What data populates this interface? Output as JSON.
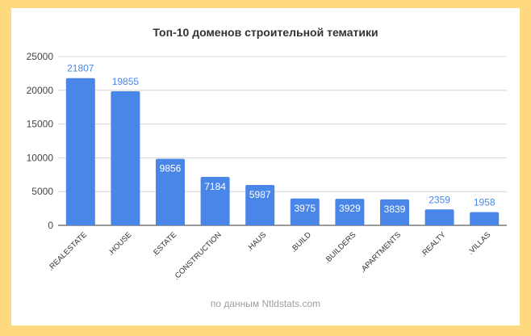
{
  "chart_data": {
    "type": "bar",
    "title": "Топ-10 доменов строительной тематики",
    "source_note": "по данным Ntldstats.com",
    "categories": [
      ".REALESTATE",
      ".HOUSE",
      ".ESTATE",
      ".CONSTRUCTION",
      ".HAUS",
      ".BUILD",
      ".BUILDERS",
      ".APARTMENTS",
      ".REALTY",
      ".VILLAS"
    ],
    "values": [
      21807,
      19855,
      9856,
      7184,
      5987,
      3975,
      3929,
      3839,
      2359,
      1958
    ],
    "yticks": [
      "0",
      "5000",
      "10000",
      "15000",
      "20000",
      "25000"
    ],
    "ylim": [
      0,
      25000
    ],
    "grid": true,
    "legend": "none",
    "bar_color": "#4a86e8"
  }
}
